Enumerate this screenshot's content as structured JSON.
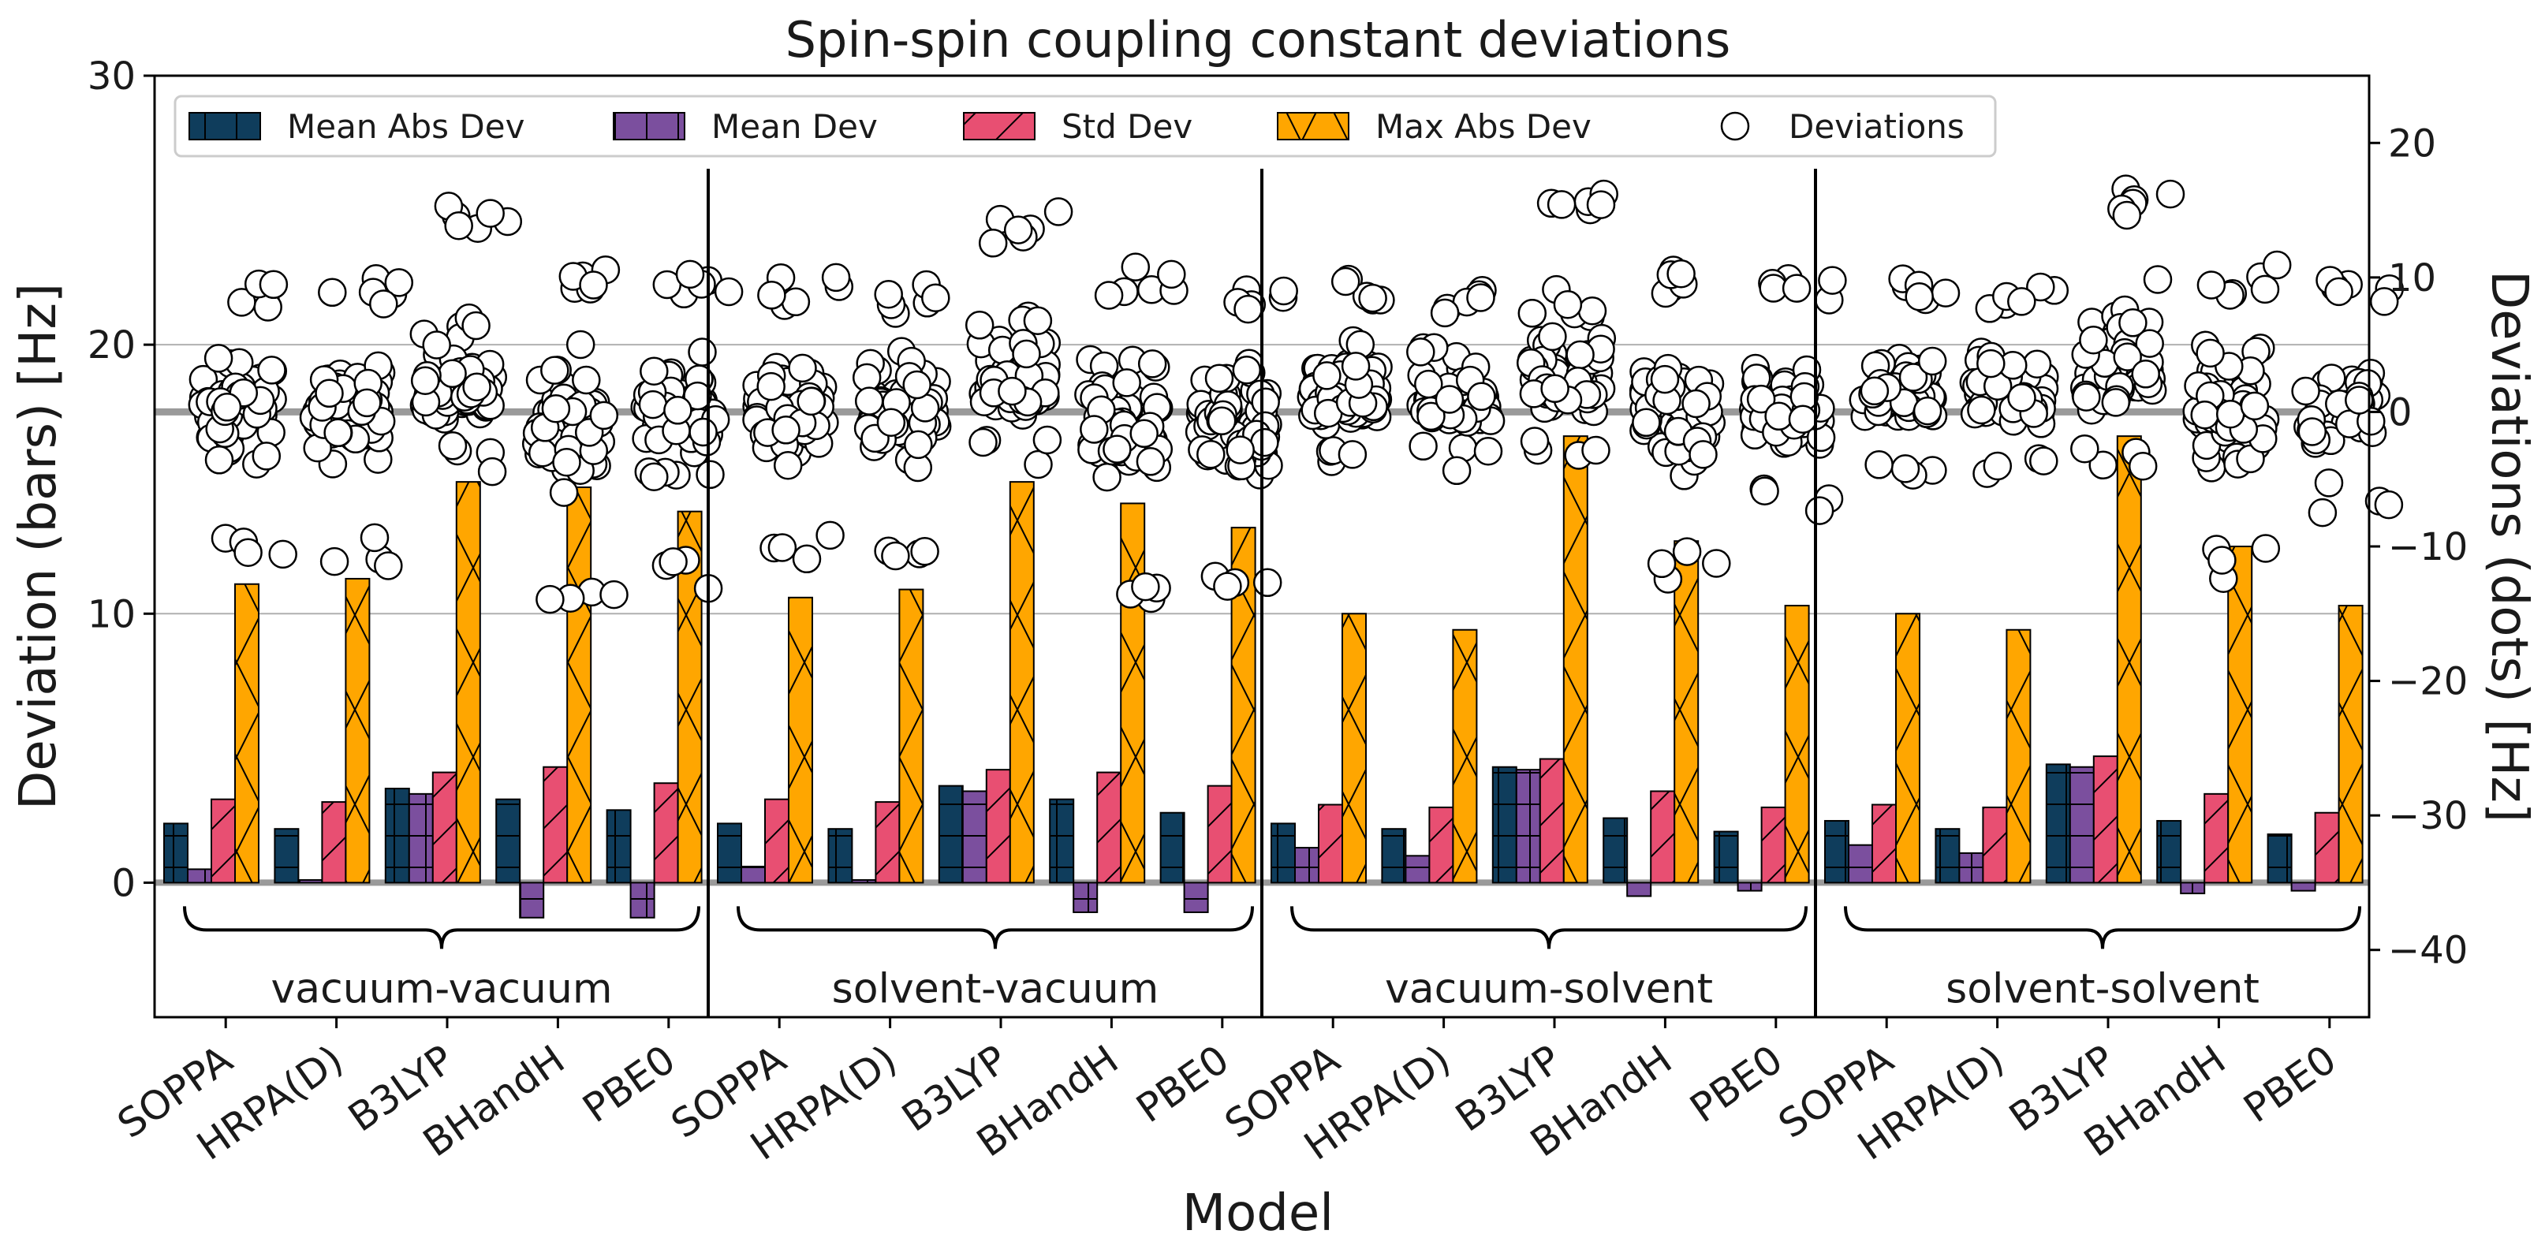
{
  "chart_data": {
    "type": "bar",
    "title": "Spin-spin coupling constant deviations",
    "xlabel": "Model",
    "ylabel": "Deviation (bars) [Hz]",
    "ylabel_right": "Deviations (dots) [Hz]",
    "ylim": [
      -5,
      30
    ],
    "yticks": [
      0,
      10,
      20,
      30
    ],
    "ylim_right": [
      -45,
      25
    ],
    "yticks_right": [
      -40,
      -30,
      -20,
      -10,
      0,
      10,
      20
    ],
    "grid": "horizontal",
    "legend_position": "top",
    "models": [
      "SOPPA",
      "HRPA(D)",
      "B3LYP",
      "BHandH",
      "PBE0"
    ],
    "legend": [
      {
        "key": "mad",
        "label": "Mean Abs Dev",
        "color": "#0f3d5c",
        "hatch": "plus"
      },
      {
        "key": "md",
        "label": "Mean Dev",
        "color": "#7b4f9e",
        "hatch": "plus"
      },
      {
        "key": "sd",
        "label": "Std Dev",
        "color": "#e84f72",
        "hatch": "slash"
      },
      {
        "key": "max",
        "label": "Max Abs Dev",
        "color": "#ffa600",
        "hatch": "cross"
      },
      {
        "key": "dots",
        "label": "Deviations",
        "color": "#ffffff",
        "hatch": "none"
      }
    ],
    "groups": [
      {
        "name": "vacuum-vacuum",
        "bars": [
          {
            "model": "SOPPA",
            "mad": 2.2,
            "md": 0.5,
            "sd": 3.1,
            "max": 11.1
          },
          {
            "model": "HRPA(D)",
            "mad": 2.0,
            "md": 0.1,
            "sd": 3.0,
            "max": 11.3
          },
          {
            "model": "B3LYP",
            "mad": 3.5,
            "md": 3.3,
            "sd": 4.1,
            "max": 14.9
          },
          {
            "model": "BHandH",
            "mad": 3.1,
            "md": -1.3,
            "sd": 4.3,
            "max": 14.7
          },
          {
            "model": "PBE0",
            "mad": 2.7,
            "md": -1.3,
            "sd": 3.7,
            "max": 13.8
          }
        ],
        "dots": [
          {
            "min": -11.5,
            "max": 10.0,
            "center": 0.0
          },
          {
            "min": -11.5,
            "max": 10.0,
            "center": 0.0
          },
          {
            "min": -4.5,
            "max": 15.5,
            "center": 1.5
          },
          {
            "min": -14.5,
            "max": 11.5,
            "center": -1.0
          },
          {
            "min": -13.5,
            "max": 10.5,
            "center": -0.5
          }
        ]
      },
      {
        "name": "solvent-vacuum",
        "bars": [
          {
            "model": "SOPPA",
            "mad": 2.2,
            "md": 0.6,
            "sd": 3.1,
            "max": 10.6
          },
          {
            "model": "HRPA(D)",
            "mad": 2.0,
            "md": 0.1,
            "sd": 3.0,
            "max": 10.9
          },
          {
            "model": "B3LYP",
            "mad": 3.6,
            "md": 3.4,
            "sd": 4.2,
            "max": 14.9
          },
          {
            "model": "BHandH",
            "mad": 3.1,
            "md": -1.1,
            "sd": 4.1,
            "max": 14.1
          },
          {
            "model": "PBE0",
            "mad": 2.6,
            "md": -1.1,
            "sd": 3.6,
            "max": 13.2
          }
        ],
        "dots": [
          {
            "min": -11.0,
            "max": 10.0,
            "center": 0.0
          },
          {
            "min": -11.0,
            "max": 9.5,
            "center": 0.0
          },
          {
            "min": -4.5,
            "max": 15.0,
            "center": 1.5
          },
          {
            "min": -14.0,
            "max": 11.0,
            "center": -1.0
          },
          {
            "min": -13.5,
            "max": 10.0,
            "center": -0.5
          }
        ]
      },
      {
        "name": "vacuum-solvent",
        "bars": [
          {
            "model": "SOPPA",
            "mad": 2.2,
            "md": 1.3,
            "sd": 2.9,
            "max": 10.0
          },
          {
            "model": "HRPA(D)",
            "mad": 2.0,
            "md": 1.0,
            "sd": 2.8,
            "max": 9.4
          },
          {
            "model": "B3LYP",
            "mad": 4.3,
            "md": 4.2,
            "sd": 4.6,
            "max": 16.6
          },
          {
            "model": "BHandH",
            "mad": 2.4,
            "md": -0.5,
            "sd": 3.4,
            "max": 12.7
          },
          {
            "model": "PBE0",
            "mad": 1.9,
            "md": -0.3,
            "sd": 2.8,
            "max": 10.3
          }
        ],
        "dots": [
          {
            "min": -5.0,
            "max": 10.0,
            "center": 1.0
          },
          {
            "min": -5.0,
            "max": 9.5,
            "center": 1.0
          },
          {
            "min": -4.5,
            "max": 17.0,
            "center": 2.5
          },
          {
            "min": -12.5,
            "max": 11.0,
            "center": 0.0
          },
          {
            "min": -8.0,
            "max": 10.0,
            "center": 0.0
          }
        ]
      },
      {
        "name": "solvent-solvent",
        "bars": [
          {
            "model": "SOPPA",
            "mad": 2.3,
            "md": 1.4,
            "sd": 2.9,
            "max": 10.0
          },
          {
            "model": "HRPA(D)",
            "mad": 2.0,
            "md": 1.1,
            "sd": 2.8,
            "max": 9.4
          },
          {
            "model": "B3LYP",
            "mad": 4.4,
            "md": 4.3,
            "sd": 4.7,
            "max": 16.6
          },
          {
            "model": "BHandH",
            "mad": 2.3,
            "md": -0.4,
            "sd": 3.3,
            "max": 12.5
          },
          {
            "model": "PBE0",
            "mad": 1.8,
            "md": -0.3,
            "sd": 2.6,
            "max": 10.3
          }
        ],
        "dots": [
          {
            "min": -5.0,
            "max": 10.0,
            "center": 1.0
          },
          {
            "min": -5.0,
            "max": 9.5,
            "center": 1.0
          },
          {
            "min": -4.5,
            "max": 17.0,
            "center": 2.5
          },
          {
            "min": -12.5,
            "max": 11.0,
            "center": 0.0
          },
          {
            "min": -7.5,
            "max": 10.0,
            "center": 0.0
          }
        ]
      }
    ]
  }
}
